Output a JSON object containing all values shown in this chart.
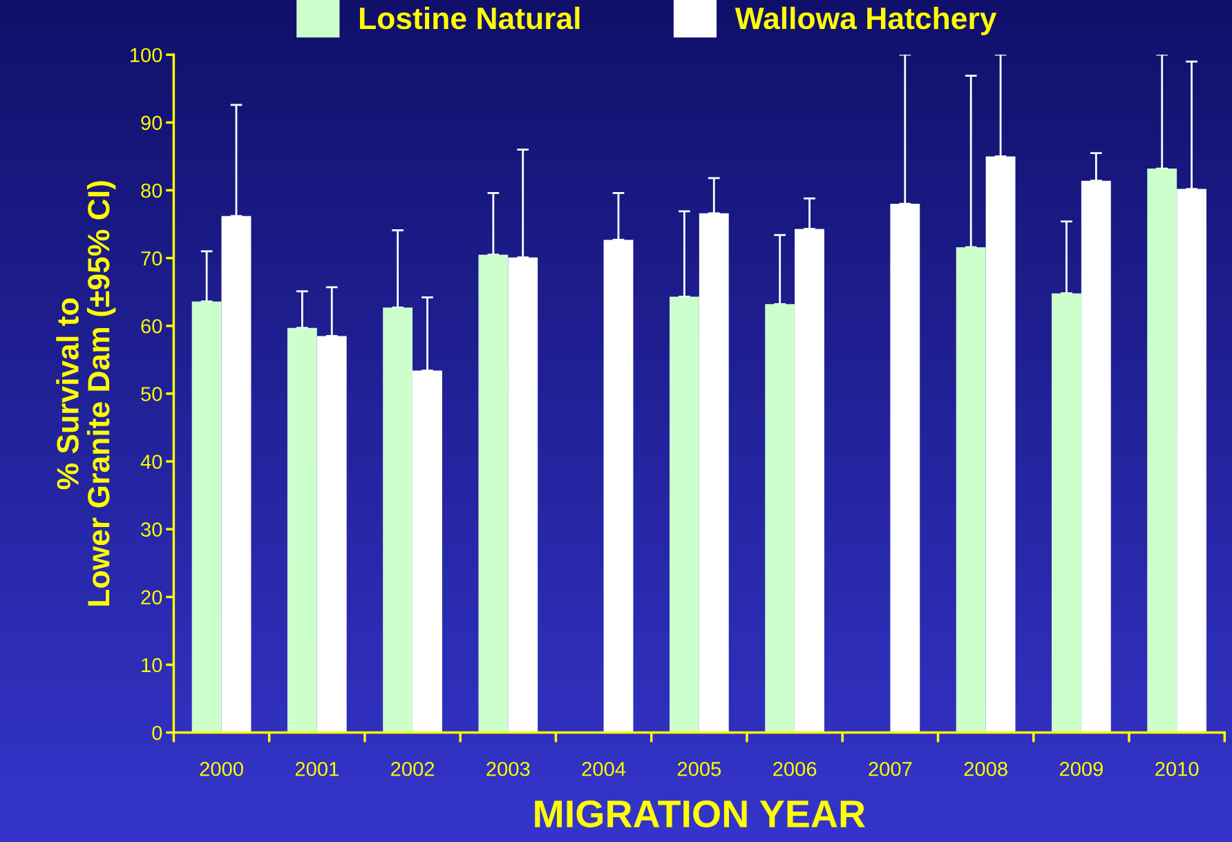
{
  "chart_data": {
    "type": "bar",
    "xlabel": "MIGRATION YEAR",
    "ylabel": "% Survival to\nLower Granite Dam (±95% CI)",
    "categories": [
      "2000",
      "2001",
      "2002",
      "2003",
      "2004",
      "2005",
      "2006",
      "2007",
      "2008",
      "2009",
      "2010"
    ],
    "series": [
      {
        "name": "Lostine Natural",
        "color": "#ccffcc",
        "values": [
          63.6,
          59.7,
          62.7,
          70.5,
          null,
          64.3,
          63.2,
          null,
          71.6,
          64.8,
          83.2
        ],
        "errors": [
          [
            63.6,
            71.0
          ],
          [
            59.7,
            65.1
          ],
          [
            62.7,
            74.1
          ],
          [
            70.5,
            79.6
          ],
          null,
          [
            64.3,
            76.9
          ],
          [
            63.2,
            73.4
          ],
          null,
          [
            71.6,
            96.9
          ],
          [
            64.8,
            75.4
          ],
          [
            83.2,
            100
          ]
        ]
      },
      {
        "name": "Wallowa Hatchery",
        "color": "#ffffff",
        "values": [
          76.2,
          58.5,
          53.4,
          70.1,
          72.7,
          76.6,
          74.3,
          78.0,
          85.0,
          81.4,
          80.2
        ],
        "errors": [
          [
            76.2,
            92.6
          ],
          [
            58.5,
            65.7
          ],
          [
            53.4,
            64.2
          ],
          [
            70.1,
            86.0
          ],
          [
            72.7,
            79.6
          ],
          [
            76.6,
            81.8
          ],
          [
            74.3,
            78.8
          ],
          [
            78.0,
            100
          ],
          [
            85.0,
            100
          ],
          [
            81.4,
            85.5
          ],
          [
            80.2,
            99.0
          ]
        ]
      }
    ],
    "ylim": [
      0,
      100
    ],
    "yticks": [
      0,
      10,
      20,
      30,
      40,
      50,
      60,
      70,
      80,
      90,
      100
    ],
    "grid": false,
    "legend": "top"
  }
}
